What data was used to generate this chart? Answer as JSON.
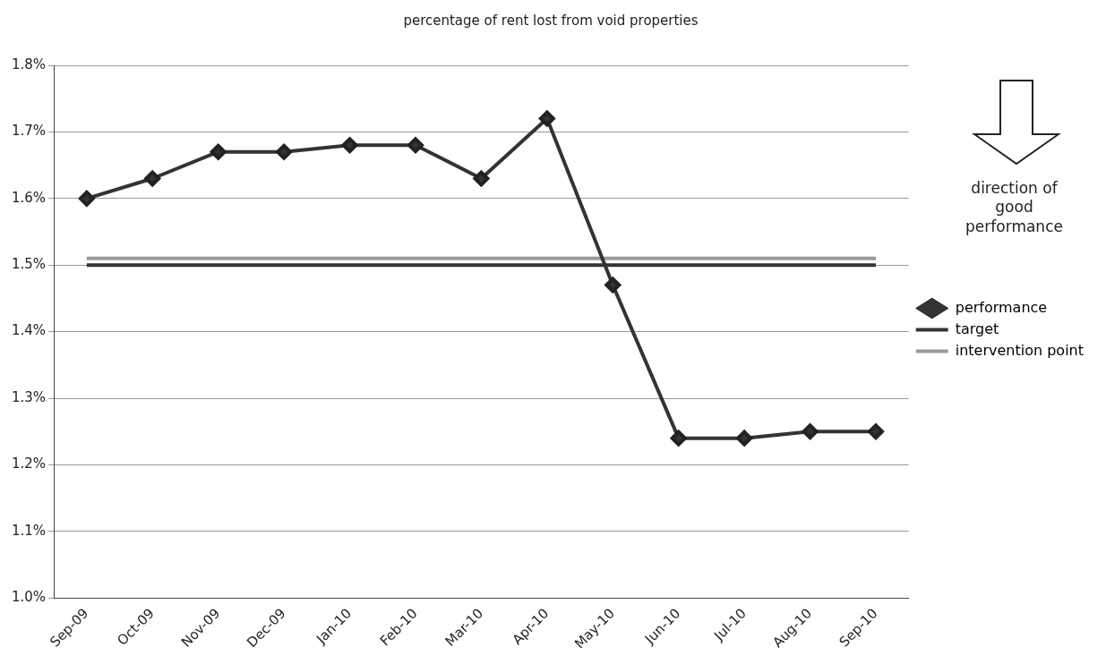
{
  "chart_data": {
    "type": "line",
    "title": "percentage of rent lost from void properties",
    "categories": [
      "Sep-09",
      "Oct-09",
      "Nov-09",
      "Dec-09",
      "Jan-10",
      "Feb-10",
      "Mar-10",
      "Apr-10",
      "May-10",
      "Jun-10",
      "Jul-10",
      "Aug-10",
      "Sep-10"
    ],
    "series": [
      {
        "name": "performance",
        "color": "#333333",
        "marker": "diamond",
        "values": [
          1.6,
          1.63,
          1.67,
          1.67,
          1.68,
          1.68,
          1.63,
          1.72,
          1.47,
          1.24,
          1.24,
          1.25,
          1.25
        ]
      },
      {
        "name": "target",
        "color": "#333333",
        "marker": "none",
        "values": [
          1.5,
          1.5,
          1.5,
          1.5,
          1.5,
          1.5,
          1.5,
          1.5,
          1.5,
          1.5,
          1.5,
          1.5,
          1.5
        ]
      },
      {
        "name": "intervention point",
        "color": "#999999",
        "marker": "none",
        "values": [
          1.51,
          1.51,
          1.51,
          1.51,
          1.51,
          1.51,
          1.51,
          1.51,
          1.51,
          1.51,
          1.51,
          1.51,
          1.51
        ]
      }
    ],
    "ylim": [
      1.0,
      1.8
    ],
    "yticks": [
      {
        "value": 1.0,
        "label": "1.0%"
      },
      {
        "value": 1.1,
        "label": "1.1%"
      },
      {
        "value": 1.2,
        "label": "1.2%"
      },
      {
        "value": 1.3,
        "label": "1.3%"
      },
      {
        "value": 1.4,
        "label": "1.4%"
      },
      {
        "value": 1.5,
        "label": "1.5%"
      },
      {
        "value": 1.6,
        "label": "1.6%"
      },
      {
        "value": 1.7,
        "label": "1.7%"
      },
      {
        "value": 1.8,
        "label": "1.8%"
      }
    ],
    "grid": "y",
    "legend": "right",
    "line_style": "solid",
    "annotations": [
      "direction of good performance"
    ]
  }
}
